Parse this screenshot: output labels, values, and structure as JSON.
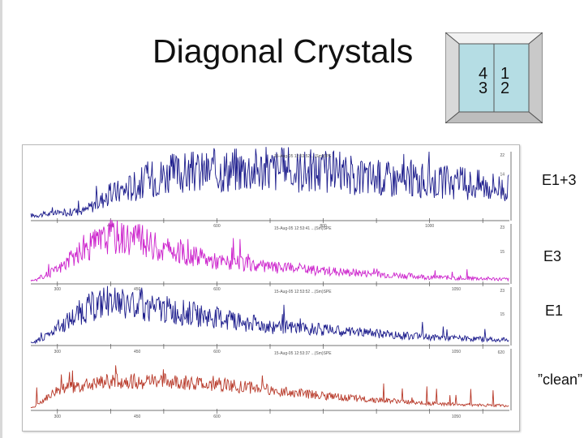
{
  "slide": {
    "title": "Diagonal Crystals"
  },
  "crystal_grid": {
    "cells": [
      {
        "label": "4"
      },
      {
        "label": "1"
      },
      {
        "label": "3"
      },
      {
        "label": "2"
      }
    ],
    "fill": "#b5dde4"
  },
  "chart_data": [
    {
      "type": "line",
      "label": "E1+3",
      "color": "#1c1c8c",
      "stamp": "15-Aug-05 12:53:52 ...(Sm)SPE",
      "x_ticks": [
        300,
        400,
        500,
        600,
        700,
        800,
        900,
        1000,
        1100
      ],
      "x_tick_labels": [
        "400",
        "600",
        "800",
        "1000"
      ],
      "y_tick_labels": [
        "22",
        "14",
        "7"
      ],
      "noise": 0.9,
      "envelope": [
        [
          255,
          0.08
        ],
        [
          350,
          0.15
        ],
        [
          400,
          0.4
        ],
        [
          500,
          0.7
        ],
        [
          650,
          0.8
        ],
        [
          800,
          0.75
        ],
        [
          900,
          0.65
        ],
        [
          1000,
          0.6
        ],
        [
          1100,
          0.55
        ],
        [
          1150,
          0.5
        ]
      ]
    },
    {
      "type": "line",
      "label": "E3",
      "color": "#cc22cc",
      "stamp": "15-Aug-05 12:53:41 ...(Sm)SPE",
      "x_ticks": [
        300,
        400,
        500,
        600,
        700,
        800,
        900,
        1000,
        1100
      ],
      "x_tick_labels": [
        "300",
        "450",
        "600",
        "1050"
      ],
      "y_tick_labels": [
        "23",
        "15"
      ],
      "noise": 0.75,
      "envelope": [
        [
          255,
          0.05
        ],
        [
          300,
          0.25
        ],
        [
          350,
          0.6
        ],
        [
          400,
          0.85
        ],
        [
          450,
          0.8
        ],
        [
          500,
          0.6
        ],
        [
          600,
          0.4
        ],
        [
          700,
          0.3
        ],
        [
          850,
          0.2
        ],
        [
          1000,
          0.12
        ],
        [
          1150,
          0.08
        ]
      ]
    },
    {
      "type": "line",
      "label": "E1",
      "color": "#1c1c8c",
      "stamp": "15-Aug-05 12:53:52 ...(Sm)SPE",
      "x_ticks": [
        300,
        400,
        500,
        600,
        700,
        800,
        900,
        1000,
        1100
      ],
      "x_tick_labels": [
        "300",
        "450",
        "600",
        "1050"
      ],
      "y_tick_labels": [
        "23",
        "15"
      ],
      "noise": 0.8,
      "envelope": [
        [
          255,
          0.05
        ],
        [
          300,
          0.3
        ],
        [
          350,
          0.65
        ],
        [
          400,
          0.8
        ],
        [
          450,
          0.75
        ],
        [
          500,
          0.65
        ],
        [
          600,
          0.5
        ],
        [
          700,
          0.35
        ],
        [
          850,
          0.25
        ],
        [
          1000,
          0.15
        ],
        [
          1150,
          0.1
        ]
      ]
    },
    {
      "type": "line",
      "label": "”clean”",
      "color": "#b83a2a",
      "stamp": "15-Aug-05 12:53:37 ...(Sm)SPE",
      "x_ticks": [
        300,
        400,
        500,
        600,
        700,
        800,
        900,
        1000,
        1100
      ],
      "x_tick_labels": [
        "300",
        "450",
        "600",
        "1050"
      ],
      "y_tick_labels": [
        "620"
      ],
      "noise": 0.55,
      "envelope": [
        [
          255,
          0.05
        ],
        [
          300,
          0.35
        ],
        [
          400,
          0.5
        ],
        [
          500,
          0.5
        ],
        [
          600,
          0.45
        ],
        [
          700,
          0.35
        ],
        [
          800,
          0.25
        ],
        [
          900,
          0.18
        ],
        [
          1000,
          0.12
        ],
        [
          1150,
          0.08
        ]
      ]
    }
  ]
}
